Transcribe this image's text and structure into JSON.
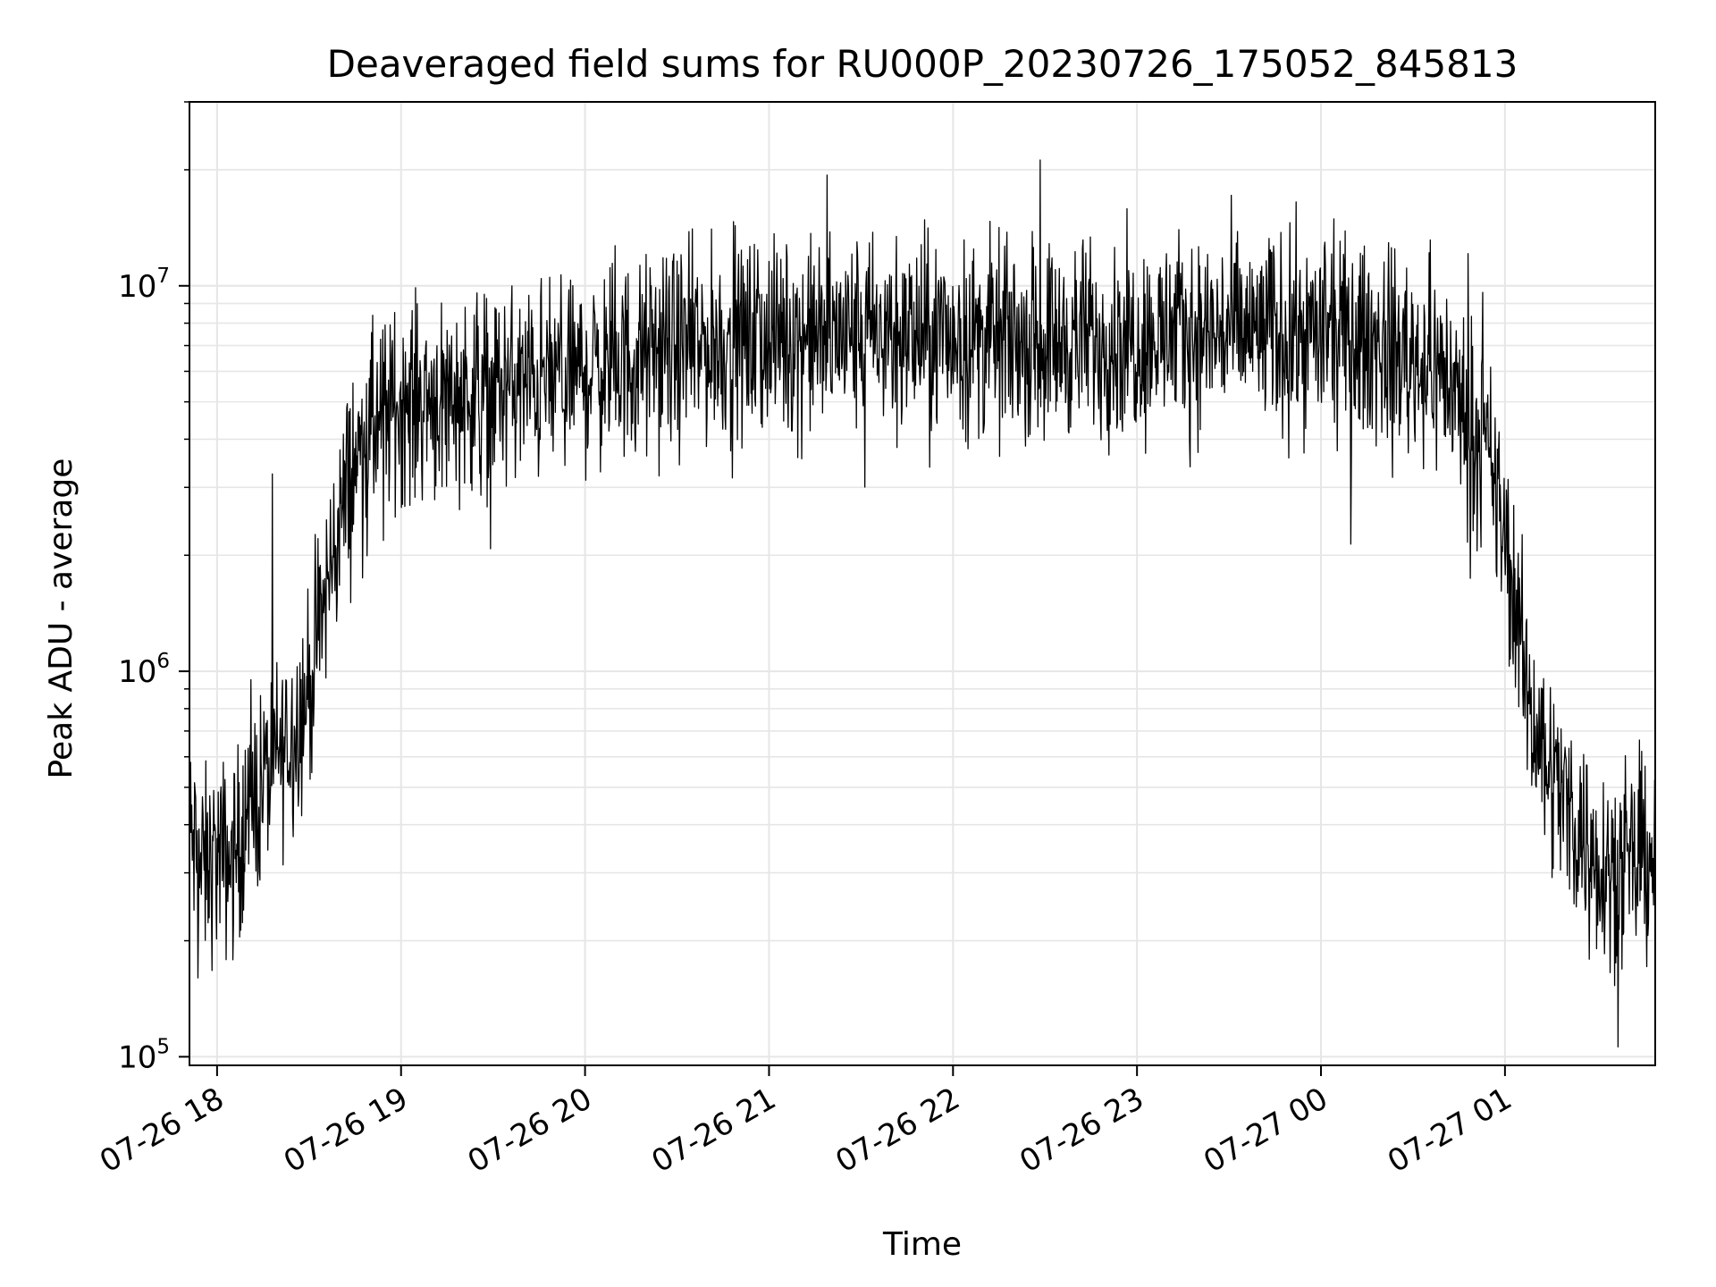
{
  "chart_data": {
    "type": "line",
    "title": "Deaveraged field sums for RU000P_20230726_175052_845813",
    "xlabel": "Time",
    "ylabel": "Peak ADU - average",
    "y_scale": "log",
    "ylim": [
      95000,
      30000000
    ],
    "xlim": [
      "2023-07-26 17:51",
      "2023-07-27 01:49"
    ],
    "grid": true,
    "line_color": "#000000",
    "grid_color": "#e6e6e6",
    "x_ticks": [
      {
        "label": "07-26 18",
        "value": "2023-07-26 18:00"
      },
      {
        "label": "07-26 19",
        "value": "2023-07-26 19:00"
      },
      {
        "label": "07-26 20",
        "value": "2023-07-26 20:00"
      },
      {
        "label": "07-26 21",
        "value": "2023-07-26 21:00"
      },
      {
        "label": "07-26 22",
        "value": "2023-07-26 22:00"
      },
      {
        "label": "07-26 23",
        "value": "2023-07-26 23:00"
      },
      {
        "label": "07-27 00",
        "value": "2023-07-27 00:00"
      },
      {
        "label": "07-27 01",
        "value": "2023-07-27 01:00"
      }
    ],
    "y_ticks": [
      {
        "base": "10",
        "exp": "5",
        "value": 100000
      },
      {
        "base": "10",
        "exp": "6",
        "value": 1000000
      },
      {
        "base": "10",
        "exp": "7",
        "value": 10000000
      }
    ],
    "series": [
      {
        "points": [
          [
            "2023-07-26 17:51",
            380000
          ],
          [
            "2023-07-26 17:55",
            300000
          ],
          [
            "2023-07-26 18:00",
            330000
          ],
          [
            "2023-07-26 18:05",
            320000
          ],
          [
            "2023-07-26 18:10",
            420000
          ],
          [
            "2023-07-26 18:15",
            520000
          ],
          [
            "2023-07-26 18:20",
            600000
          ],
          [
            "2023-07-26 18:25",
            700000
          ],
          [
            "2023-07-26 18:30",
            900000
          ],
          [
            "2023-07-26 18:35",
            1500000
          ],
          [
            "2023-07-26 18:40",
            2500000
          ],
          [
            "2023-07-26 18:45",
            3500000
          ],
          [
            "2023-07-26 18:50",
            4200000
          ],
          [
            "2023-07-26 19:00",
            5000000
          ],
          [
            "2023-07-26 19:15",
            5200000
          ],
          [
            "2023-07-26 19:30",
            5400000
          ],
          [
            "2023-07-26 19:45",
            5600000
          ],
          [
            "2023-07-26 20:00",
            6000000
          ],
          [
            "2023-07-26 20:30",
            6800000
          ],
          [
            "2023-07-26 21:00",
            7300000
          ],
          [
            "2023-07-26 21:30",
            7500000
          ],
          [
            "2023-07-26 22:00",
            7400000
          ],
          [
            "2023-07-26 22:30",
            7200000
          ],
          [
            "2023-07-26 23:00",
            7300000
          ],
          [
            "2023-07-26 23:30",
            7600000
          ],
          [
            "2023-07-27 00:00",
            7500000
          ],
          [
            "2023-07-27 00:20",
            7000000
          ],
          [
            "2023-07-27 00:40",
            6000000
          ],
          [
            "2023-07-27 00:55",
            3500000
          ],
          [
            "2023-07-27 01:00",
            2200000
          ],
          [
            "2023-07-27 01:05",
            1200000
          ],
          [
            "2023-07-27 01:10",
            700000
          ],
          [
            "2023-07-27 01:20",
            450000
          ],
          [
            "2023-07-27 01:30",
            330000
          ],
          [
            "2023-07-27 01:40",
            300000
          ],
          [
            "2023-07-27 01:49",
            350000
          ]
        ]
      }
    ]
  }
}
